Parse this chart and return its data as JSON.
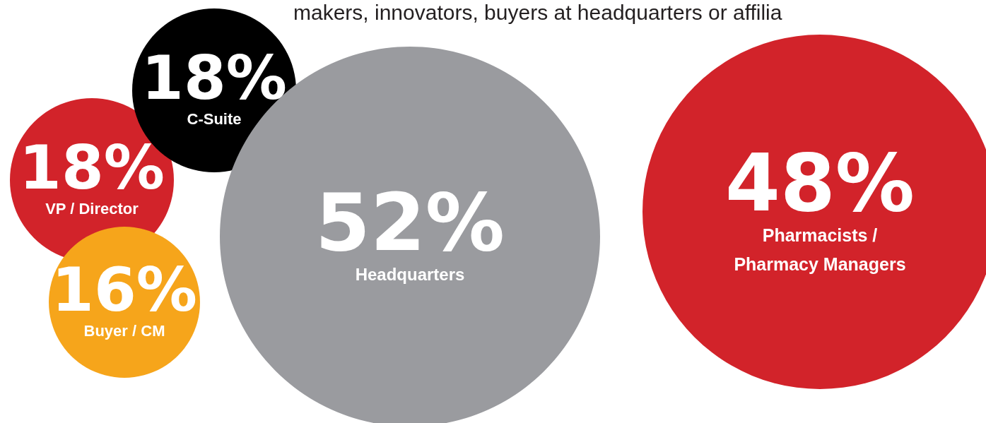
{
  "chart_data": {
    "type": "other",
    "annotations": [
      "makers, innovators, buyers at headquarters or affilia"
    ],
    "categories": [
      "C-Suite",
      "VP / Director",
      "Buyer / CM",
      "Headquarters",
      "Pharmacists / Pharmacy Managers"
    ],
    "values": [
      18,
      18,
      16,
      52,
      48
    ],
    "value_labels": [
      "18%",
      "18%",
      "16%",
      "52%",
      "48%"
    ],
    "colors": [
      "#000000",
      "#d2232a",
      "#f6a51b",
      "#9a9b9f",
      "#d2232a"
    ]
  }
}
